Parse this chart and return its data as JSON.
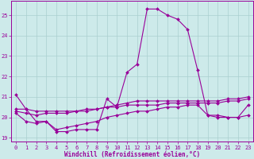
{
  "xlabel": "Windchill (Refroidissement éolien,°C)",
  "background_color": "#cdeaea",
  "grid_color": "#aacfcf",
  "line_color": "#990099",
  "xlim": [
    -0.5,
    23.5
  ],
  "ylim": [
    18.8,
    25.7
  ],
  "yticks": [
    19,
    20,
    21,
    22,
    23,
    24,
    25
  ],
  "xticks": [
    0,
    1,
    2,
    3,
    4,
    5,
    6,
    7,
    8,
    9,
    10,
    11,
    12,
    13,
    14,
    15,
    16,
    17,
    18,
    19,
    20,
    21,
    22,
    23
  ],
  "series": [
    {
      "x": [
        0,
        1,
        2,
        3,
        4,
        5,
        6,
        7,
        8,
        9,
        10,
        11,
        12,
        13,
        14,
        15,
        16,
        17,
        18,
        19,
        20,
        21,
        22,
        23
      ],
      "y": [
        21.1,
        20.4,
        19.8,
        19.8,
        19.3,
        19.3,
        19.4,
        19.4,
        19.4,
        20.9,
        20.5,
        22.2,
        22.6,
        25.3,
        25.3,
        25.0,
        24.8,
        24.3,
        22.3,
        20.1,
        20.0,
        20.0,
        20.0,
        20.6
      ]
    },
    {
      "x": [
        0,
        1,
        2,
        3,
        4,
        5,
        6,
        7,
        8,
        9,
        10,
        11,
        12,
        13,
        14,
        15,
        16,
        17,
        18,
        19,
        20,
        21,
        22,
        23
      ],
      "y": [
        20.2,
        19.8,
        19.7,
        19.8,
        19.4,
        19.5,
        19.6,
        19.7,
        19.8,
        20.0,
        20.1,
        20.2,
        20.3,
        20.3,
        20.4,
        20.5,
        20.5,
        20.6,
        20.6,
        20.1,
        20.1,
        20.0,
        20.0,
        20.1
      ]
    },
    {
      "x": [
        0,
        1,
        2,
        3,
        4,
        5,
        6,
        7,
        8,
        9,
        10,
        11,
        12,
        13,
        14,
        15,
        16,
        17,
        18,
        19,
        20,
        21,
        22,
        23
      ],
      "y": [
        20.3,
        20.2,
        20.1,
        20.2,
        20.2,
        20.2,
        20.3,
        20.3,
        20.4,
        20.5,
        20.5,
        20.6,
        20.6,
        20.6,
        20.6,
        20.7,
        20.7,
        20.7,
        20.7,
        20.7,
        20.7,
        20.8,
        20.8,
        20.9
      ]
    },
    {
      "x": [
        0,
        1,
        2,
        3,
        4,
        5,
        6,
        7,
        8,
        9,
        10,
        11,
        12,
        13,
        14,
        15,
        16,
        17,
        18,
        19,
        20,
        21,
        22,
        23
      ],
      "y": [
        20.4,
        20.4,
        20.3,
        20.3,
        20.3,
        20.3,
        20.3,
        20.4,
        20.4,
        20.5,
        20.6,
        20.7,
        20.8,
        20.8,
        20.8,
        20.8,
        20.8,
        20.8,
        20.8,
        20.8,
        20.8,
        20.9,
        20.9,
        21.0
      ]
    }
  ],
  "marker": "D",
  "markersize": 2.0,
  "linewidth": 0.8,
  "tick_fontsize": 5.0,
  "label_fontsize": 5.5
}
